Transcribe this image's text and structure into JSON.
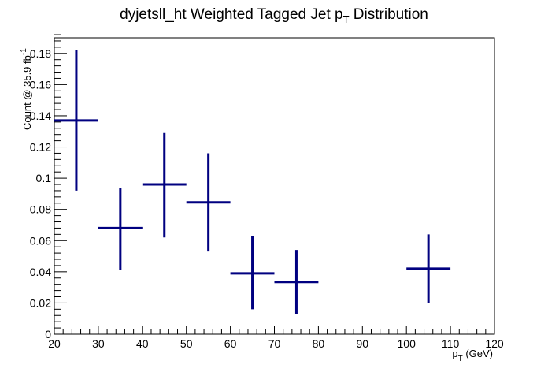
{
  "chart_data": {
    "type": "scatter",
    "title": {
      "base": "dyjetsll_ht Weighted Tagged Jet p",
      "sub": "T",
      "tail": " Distribution"
    },
    "xlabel": {
      "base": "p",
      "sub": "T",
      "tail": " (GeV)"
    },
    "ylabel": {
      "base": "Count @ 35.9 fb",
      "sup": "-1"
    },
    "xlim": [
      20,
      120
    ],
    "ylim": [
      0,
      0.19
    ],
    "x_ticks": [
      20,
      30,
      40,
      50,
      60,
      70,
      80,
      90,
      100,
      110,
      120
    ],
    "y_ticks": [
      0,
      0.02,
      0.04,
      0.06,
      0.08,
      0.1,
      0.12,
      0.14,
      0.16,
      0.18
    ],
    "series": [
      {
        "color": "#000080",
        "points": [
          {
            "x": 25,
            "xlow": 20,
            "xhigh": 30,
            "y": 0.137,
            "ylow": 0.092,
            "yhigh": 0.182
          },
          {
            "x": 35,
            "xlow": 30,
            "xhigh": 40,
            "y": 0.068,
            "ylow": 0.041,
            "yhigh": 0.094
          },
          {
            "x": 45,
            "xlow": 40,
            "xhigh": 50,
            "y": 0.096,
            "ylow": 0.062,
            "yhigh": 0.129
          },
          {
            "x": 55,
            "xlow": 50,
            "xhigh": 60,
            "y": 0.0845,
            "ylow": 0.053,
            "yhigh": 0.116
          },
          {
            "x": 65,
            "xlow": 60,
            "xhigh": 70,
            "y": 0.039,
            "ylow": 0.016,
            "yhigh": 0.063
          },
          {
            "x": 75,
            "xlow": 70,
            "xhigh": 80,
            "y": 0.0335,
            "ylow": 0.013,
            "yhigh": 0.054
          },
          {
            "x": 105,
            "xlow": 100,
            "xhigh": 110,
            "y": 0.042,
            "ylow": 0.02,
            "yhigh": 0.064
          }
        ]
      }
    ],
    "grid": false,
    "legend": "none"
  }
}
